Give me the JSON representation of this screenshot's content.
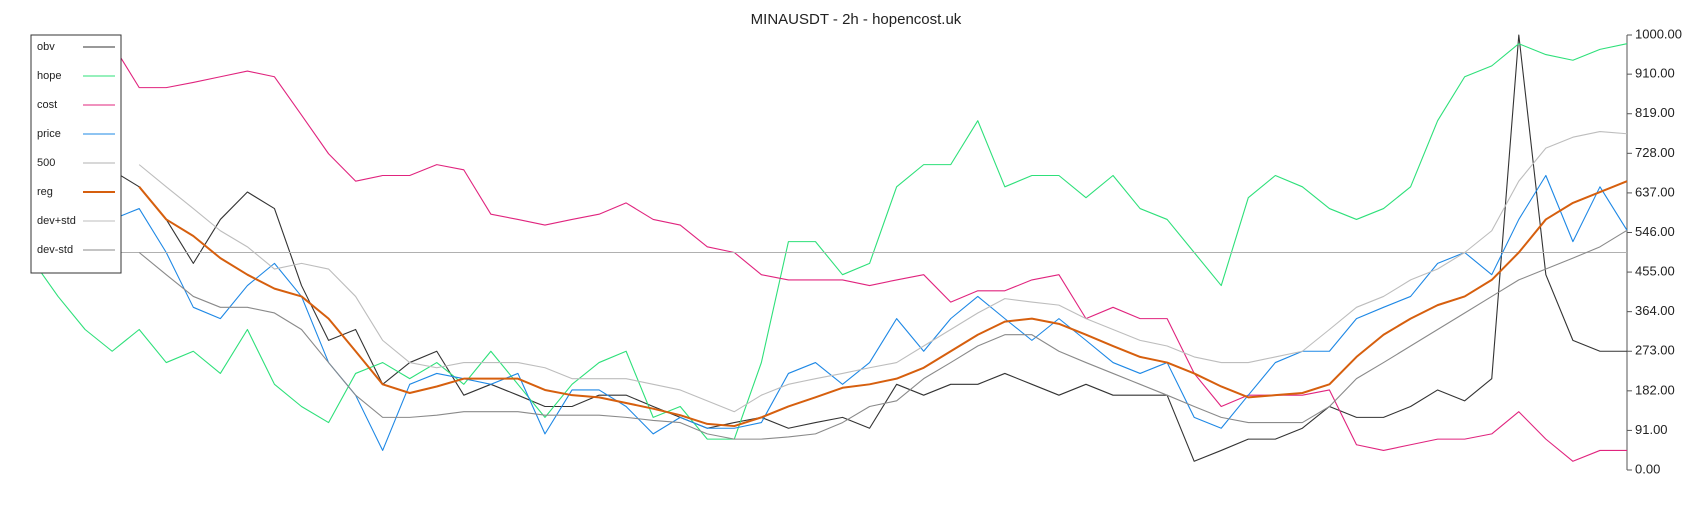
{
  "chart_data": {
    "type": "line",
    "title": "MINAUSDT - 2h - hopencost.uk",
    "ylim": [
      0,
      1000
    ],
    "yticks": [
      {
        "value": 0,
        "label": "0.00"
      },
      {
        "value": 91,
        "label": "91.00"
      },
      {
        "value": 182,
        "label": "182.00"
      },
      {
        "value": 273,
        "label": "273.00"
      },
      {
        "value": 364,
        "label": "364.00"
      },
      {
        "value": 455,
        "label": "455.00"
      },
      {
        "value": 546,
        "label": "546.00"
      },
      {
        "value": 637,
        "label": "637.00"
      },
      {
        "value": 728,
        "label": "728.00"
      },
      {
        "value": 819,
        "label": "819.00"
      },
      {
        "value": 910,
        "label": "910.00"
      },
      {
        "value": 1000,
        "label": "1000.00"
      }
    ],
    "y_axis_side": "right",
    "legend": "upper left",
    "series": [
      {
        "name": "obv",
        "color": "#333333",
        "values": [
          null,
          null,
          null,
          689,
          651,
          576,
          475,
          576,
          639,
          601,
          424,
          298,
          323,
          197,
          247,
          273,
          172,
          197,
          172,
          146,
          146,
          172,
          172,
          146,
          121,
          96,
          109,
          121,
          96,
          109,
          121,
          96,
          197,
          172,
          197,
          197,
          222,
          197,
          172,
          197,
          172,
          172,
          172,
          20,
          45,
          71,
          71,
          96,
          146,
          121,
          121,
          146,
          184,
          159,
          210,
          1000,
          449,
          298,
          273,
          273
        ]
      },
      {
        "name": "hope",
        "color": "#2ee07a",
        "values": [
          487,
          399,
          323,
          273,
          323,
          247,
          273,
          222,
          323,
          197,
          146,
          109,
          222,
          247,
          210,
          247,
          197,
          273,
          197,
          121,
          197,
          247,
          273,
          121,
          146,
          71,
          71,
          247,
          525,
          525,
          449,
          475,
          651,
          702,
          702,
          803,
          651,
          677,
          677,
          626,
          677,
          601,
          576,
          500,
          424,
          626,
          677,
          651,
          601,
          576,
          601,
          651,
          803,
          904,
          929,
          980,
          955,
          942,
          967,
          980
        ]
      },
      {
        "name": "cost",
        "color": "#e0247e",
        "values": [
          null,
          null,
          null,
          980,
          879,
          879,
          891,
          904,
          917,
          904,
          816,
          727,
          664,
          677,
          677,
          702,
          690,
          588,
          576,
          563,
          576,
          588,
          614,
          576,
          563,
          513,
          500,
          449,
          437,
          437,
          437,
          424,
          437,
          449,
          386,
          412,
          412,
          437,
          449,
          348,
          374,
          348,
          348,
          222,
          146,
          172,
          172,
          172,
          184,
          58,
          45,
          58,
          71,
          71,
          83,
          134,
          71,
          20,
          45,
          45
        ]
      },
      {
        "name": "price",
        "color": "#1e88e5",
        "values": [
          null,
          null,
          null,
          576,
          601,
          500,
          374,
          348,
          424,
          475,
          399,
          247,
          172,
          45,
          197,
          222,
          210,
          197,
          222,
          83,
          184,
          184,
          146,
          83,
          121,
          96,
          96,
          109,
          222,
          247,
          197,
          247,
          348,
          273,
          348,
          399,
          348,
          298,
          348,
          298,
          247,
          222,
          247,
          121,
          96,
          172,
          247,
          273,
          273,
          348,
          374,
          399,
          475,
          500,
          449,
          576,
          677,
          525,
          651,
          551
        ]
      },
      {
        "name": "500",
        "color": "#b0b0b0",
        "values": [
          500,
          500,
          500,
          500,
          500,
          500,
          500,
          500,
          500,
          500,
          500,
          500,
          500,
          500,
          500,
          500,
          500,
          500,
          500,
          500,
          500,
          500,
          500,
          500,
          500,
          500,
          500,
          500,
          500,
          500,
          500,
          500,
          500,
          500,
          500,
          500,
          500,
          500,
          500,
          500,
          500,
          500,
          500,
          500,
          500,
          500,
          500,
          500,
          500,
          500,
          500,
          500,
          500,
          500,
          500,
          500,
          500,
          500,
          500,
          500
        ]
      },
      {
        "name": "reg",
        "color": "#d65f0e",
        "linewidth": 2,
        "values": [
          null,
          null,
          null,
          null,
          651,
          576,
          538,
          487,
          449,
          417,
          399,
          348,
          273,
          197,
          177,
          192,
          210,
          210,
          210,
          184,
          172,
          167,
          154,
          141,
          126,
          106,
          101,
          121,
          146,
          167,
          189,
          197,
          210,
          235,
          273,
          311,
          341,
          348,
          336,
          311,
          285,
          260,
          247,
          222,
          192,
          167,
          172,
          177,
          197,
          260,
          311,
          348,
          379,
          399,
          437,
          500,
          576,
          614,
          639,
          664
        ]
      },
      {
        "name": "dev+std",
        "color": "#bdbdbd",
        "values": [
          null,
          null,
          null,
          null,
          702,
          651,
          601,
          550,
          513,
          462,
          475,
          462,
          399,
          298,
          247,
          235,
          247,
          247,
          247,
          235,
          210,
          210,
          210,
          197,
          184,
          159,
          134,
          172,
          197,
          210,
          222,
          235,
          247,
          285,
          323,
          361,
          394,
          386,
          379,
          348,
          323,
          298,
          285,
          260,
          247,
          247,
          260,
          273,
          323,
          374,
          399,
          437,
          462,
          500,
          550,
          664,
          740,
          765,
          778,
          773
        ]
      },
      {
        "name": "dev-std",
        "color": "#8a8a8a",
        "values": [
          null,
          null,
          null,
          null,
          500,
          449,
          399,
          374,
          374,
          361,
          323,
          247,
          172,
          121,
          121,
          126,
          134,
          134,
          134,
          126,
          126,
          126,
          121,
          114,
          109,
          83,
          71,
          71,
          76,
          83,
          109,
          146,
          159,
          210,
          247,
          285,
          311,
          311,
          273,
          247,
          222,
          197,
          172,
          146,
          121,
          109,
          109,
          109,
          146,
          210,
          247,
          285,
          323,
          361,
          399,
          437,
          462,
          487,
          513,
          551
        ]
      }
    ]
  }
}
